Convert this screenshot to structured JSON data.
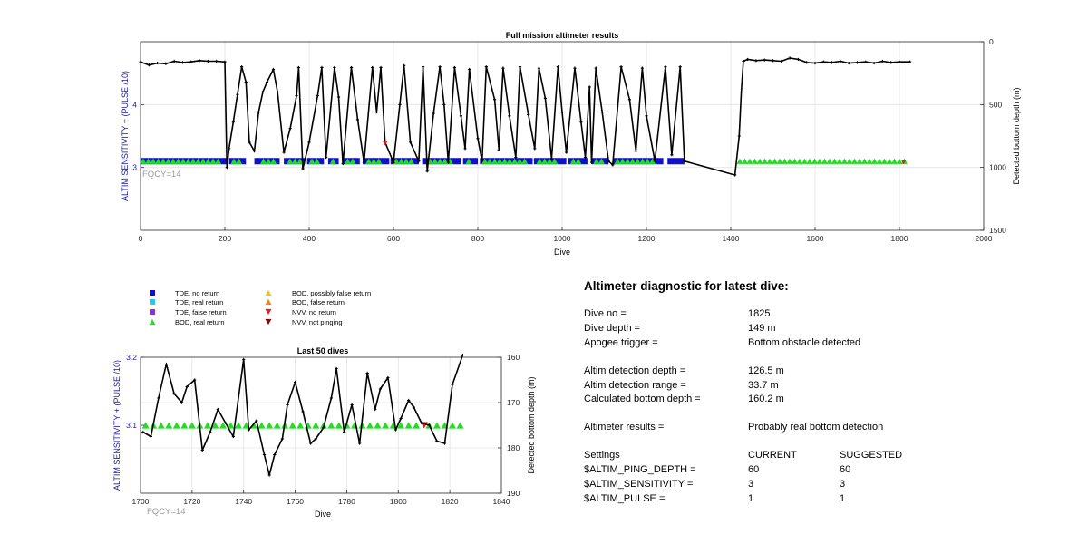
{
  "chart_data": [
    {
      "type": "scatter",
      "title": "Full mission altimeter results",
      "xlabel": "Dive",
      "ylabel_left": "ALTIM SENSITIVITY + (PULSE /10)",
      "ylabel_right": "Detected bottom depth (m)",
      "xlim": [
        0,
        2000
      ],
      "ylim_left": [
        2,
        5
      ],
      "ylim_right": [
        0,
        1500
      ],
      "right_axis_reversed": true,
      "grid": true,
      "xticks": [
        "0",
        "200",
        "400",
        "600",
        "800",
        "1000",
        "1200",
        "1400",
        "1600",
        "1800",
        "2000"
      ],
      "yticks_left": [
        "3",
        "4"
      ],
      "yticks_right": [
        "0",
        "500",
        "1000",
        "1500"
      ],
      "annotation": "FQCY=14",
      "tde_no_return_segments": [
        [
          0,
          205
        ],
        [
          210,
          250
        ],
        [
          270,
          330
        ],
        [
          340,
          390
        ],
        [
          395,
          435
        ],
        [
          445,
          470
        ],
        [
          478,
          520
        ],
        [
          527,
          590
        ],
        [
          593,
          660
        ],
        [
          668,
          760
        ],
        [
          765,
          800
        ],
        [
          805,
          930
        ],
        [
          933,
          1010
        ],
        [
          1015,
          1060
        ],
        [
          1070,
          1110
        ],
        [
          1120,
          1240
        ],
        [
          1250,
          1290
        ]
      ],
      "bod_real_return_segments": [
        [
          0,
          200
        ],
        [
          215,
          245
        ],
        [
          285,
          325
        ],
        [
          348,
          385
        ],
        [
          400,
          425
        ],
        [
          450,
          465
        ],
        [
          485,
          515
        ],
        [
          535,
          580
        ],
        [
          600,
          650
        ],
        [
          680,
          750
        ],
        [
          772,
          790
        ],
        [
          810,
          925
        ],
        [
          940,
          1000
        ],
        [
          1020,
          1050
        ],
        [
          1075,
          1100
        ],
        [
          1125,
          1230
        ],
        [
          1415,
          1825
        ]
      ],
      "depth_trace": {
        "dive": [
          0,
          20,
          40,
          60,
          80,
          100,
          120,
          140,
          160,
          180,
          200,
          205,
          210,
          220,
          230,
          240,
          250,
          258,
          270,
          280,
          290,
          300,
          315,
          325,
          340,
          355,
          370,
          375,
          385,
          400,
          420,
          430,
          440,
          460,
          470,
          480,
          500,
          515,
          530,
          550,
          560,
          570,
          580,
          600,
          615,
          625,
          640,
          660,
          670,
          680,
          695,
          710,
          720,
          730,
          745,
          760,
          770,
          780,
          800,
          810,
          820,
          840,
          850,
          860,
          875,
          890,
          900,
          920,
          935,
          945,
          960,
          975,
          990,
          1000,
          1010,
          1030,
          1045,
          1055,
          1065,
          1070,
          1080,
          1095,
          1110,
          1120,
          1140,
          1160,
          1175,
          1190,
          1200,
          1220,
          1245,
          1260,
          1280,
          1290,
          1410,
          1420,
          1425,
          1430,
          1440,
          1460,
          1480,
          1500,
          1520,
          1540,
          1560,
          1580,
          1600,
          1620,
          1640,
          1660,
          1680,
          1700,
          1720,
          1740,
          1760,
          1780,
          1800,
          1825
        ],
        "depth": [
          160,
          185,
          170,
          175,
          155,
          165,
          160,
          150,
          155,
          155,
          160,
          1000,
          850,
          640,
          420,
          200,
          320,
          800,
          870,
          560,
          400,
          320,
          220,
          400,
          880,
          690,
          430,
          205,
          1010,
          800,
          430,
          205,
          920,
          205,
          440,
          970,
          205,
          620,
          960,
          205,
          560,
          205,
          800,
          960,
          500,
          190,
          800,
          950,
          200,
          1030,
          570,
          200,
          500,
          960,
          205,
          590,
          850,
          220,
          770,
          950,
          200,
          460,
          860,
          210,
          590,
          920,
          200,
          580,
          850,
          210,
          450,
          930,
          200,
          560,
          880,
          210,
          640,
          920,
          360,
          960,
          210,
          560,
          950,
          980,
          200,
          460,
          870,
          210,
          590,
          950,
          200,
          900,
          200,
          950,
          1060,
          750,
          400,
          155,
          140,
          150,
          145,
          150,
          155,
          130,
          140,
          165,
          170,
          160,
          165,
          155,
          170,
          165,
          160,
          170,
          155,
          165,
          160,
          160
        ]
      },
      "nvv_no_return_points": [
        [
          580,
          810
        ],
        [
          1810,
          960
        ]
      ]
    },
    {
      "type": "scatter",
      "title": "Last 50 dives",
      "xlabel": "Dive",
      "ylabel_left": "ALTIM SENSITIVITY + (PULSE /10)",
      "ylabel_right": "Detected bottom depth (m)",
      "xlim": [
        1700,
        1840
      ],
      "ylim_left": [
        3.0,
        3.2
      ],
      "ylim_right": [
        160,
        190
      ],
      "right_axis_reversed": true,
      "grid": true,
      "xticks": [
        "1700",
        "1720",
        "1740",
        "1760",
        "1780",
        "1800",
        "1820",
        "1840"
      ],
      "yticks_left": [
        "3.1",
        "3.2"
      ],
      "yticks_right": [
        "160",
        "170",
        "180",
        "190"
      ],
      "annotation": "FQCY=14",
      "bod_real_return_dives": [
        1702,
        1705,
        1708,
        1711,
        1714,
        1717,
        1720,
        1723,
        1726,
        1729,
        1732,
        1735,
        1738,
        1741,
        1744,
        1747,
        1750,
        1753,
        1756,
        1759,
        1762,
        1765,
        1768,
        1771,
        1774,
        1777,
        1780,
        1783,
        1786,
        1789,
        1792,
        1795,
        1798,
        1801,
        1804,
        1807,
        1812,
        1815,
        1818,
        1821,
        1824
      ],
      "nvv_no_return_dives": [
        1810
      ],
      "depth_trace": {
        "dive": [
          1701,
          1704,
          1707,
          1710,
          1713,
          1716,
          1718,
          1721,
          1724,
          1727,
          1730,
          1733,
          1736,
          1740,
          1742,
          1745,
          1748,
          1750,
          1752,
          1755,
          1757,
          1760,
          1763,
          1766,
          1768,
          1771,
          1774,
          1776,
          1779,
          1782,
          1785,
          1788,
          1791,
          1793,
          1796,
          1799,
          1801,
          1804,
          1806,
          1809,
          1812,
          1815,
          1818,
          1821,
          1825
        ],
        "depth": [
          176.5,
          177.5,
          169.0,
          161.5,
          168.0,
          170.0,
          166.5,
          165.0,
          180.5,
          176.5,
          171.5,
          174.5,
          177.5,
          160.5,
          176.0,
          174.0,
          181.5,
          186.0,
          181.5,
          178.0,
          170.5,
          165.5,
          172.0,
          179.0,
          178.0,
          175.5,
          169.0,
          162.5,
          176.5,
          170.5,
          179.0,
          163.5,
          171.5,
          167.0,
          164.5,
          176.0,
          173.5,
          169.5,
          171.0,
          174.5,
          175.0,
          178.5,
          179.0,
          166.0,
          159.5
        ]
      }
    }
  ],
  "legend": {
    "items": [
      {
        "label": "TDE, no return",
        "color": "#1010c8",
        "marker": "square"
      },
      {
        "label": "TDE, real return",
        "color": "#30c8e0",
        "marker": "square"
      },
      {
        "label": "TDE, false return",
        "color": "#9030c8",
        "marker": "square"
      },
      {
        "label": "BOD, real return",
        "color": "#22dd22",
        "marker": "triangle-up"
      },
      {
        "label": "BOD, possibly false return",
        "color": "#f0c020",
        "marker": "triangle-up"
      },
      {
        "label": "BOD, false return",
        "color": "#f08020",
        "marker": "triangle-up"
      },
      {
        "label": "NVV, no return",
        "color": "#e02020",
        "marker": "triangle-down"
      },
      {
        "label": "NVV, not pinging",
        "color": "#801010",
        "marker": "triangle-down"
      }
    ]
  },
  "diagnostic": {
    "title": "Altimeter diagnostic for latest dive:",
    "dive_no_label": "Dive no =",
    "dive_no_value": "1825",
    "dive_depth_label": "Dive depth =",
    "dive_depth_value": "149 m",
    "apogee_label": "Apogee trigger =",
    "apogee_value": "Bottom obstacle detected",
    "detect_depth_label": "Altim detection depth =",
    "detect_depth_value": "126.5 m",
    "detect_range_label": "Altim detection range =",
    "detect_range_value": "33.7 m",
    "calc_depth_label": "Calculated bottom depth =",
    "calc_depth_value": "160.2 m",
    "results_label": "Altimeter results =",
    "results_value": "Probably real bottom detection",
    "settings_label": "Settings",
    "current_header": "CURRENT",
    "suggested_header": "SUGGESTED",
    "ping_depth_label": "$ALTIM_PING_DEPTH =",
    "ping_depth_current": "60",
    "ping_depth_suggested": "60",
    "sensitivity_label": "$ALTIM_SENSITIVITY =",
    "sensitivity_current": "3",
    "sensitivity_suggested": "3",
    "pulse_label": "$ALTIM_PULSE =",
    "pulse_current": "1",
    "pulse_suggested": "1"
  },
  "colors": {
    "left_axis": "#1a1aa8",
    "annotation": "#999999",
    "grid": "#e4e4e4",
    "trace": "#000000"
  }
}
